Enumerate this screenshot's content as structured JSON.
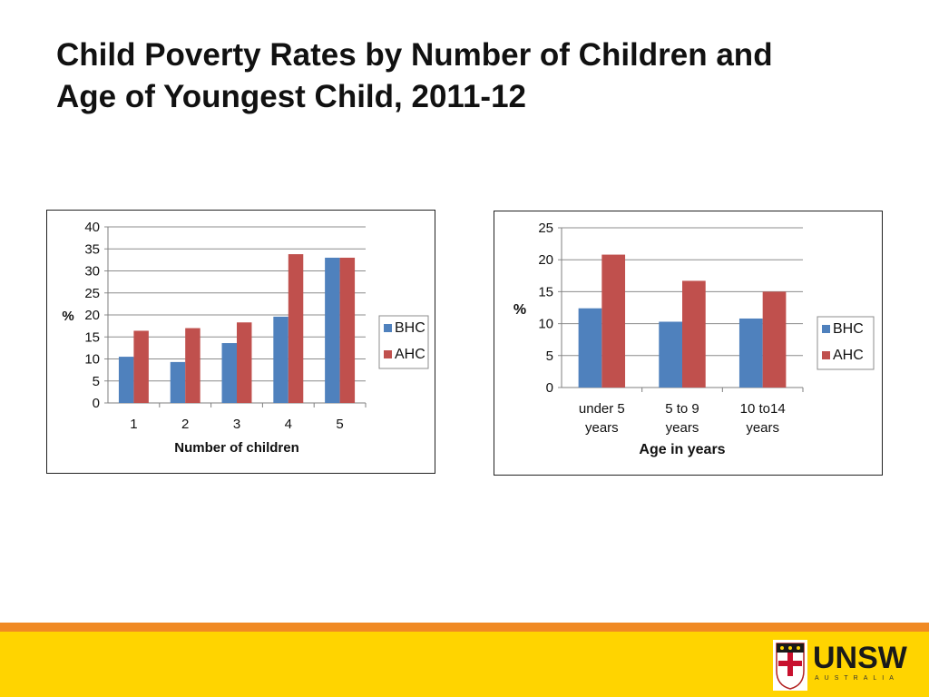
{
  "slide": {
    "title_line1": "Child Poverty Rates by Number of Children and",
    "title_line2": "Age of Youngest Child, 2011-12"
  },
  "colors": {
    "bhc": "#4f81bd",
    "ahc": "#c0504d",
    "grid": "#8c8c8c",
    "footer_orange": "#f08a24",
    "footer_yellow": "#ffd400"
  },
  "logo": {
    "name": "UNSW",
    "sub": "AUSTRALIA",
    "icon": "unsw-crest-icon"
  },
  "chart_data": [
    {
      "type": "bar",
      "categories": [
        "1",
        "2",
        "3",
        "4",
        "5"
      ],
      "series": [
        {
          "name": "BHC",
          "values": [
            10.5,
            9.3,
            13.6,
            19.6,
            33.0
          ]
        },
        {
          "name": "AHC",
          "values": [
            16.4,
            17.0,
            18.3,
            33.8,
            33.0
          ]
        }
      ],
      "title": "",
      "xlabel": "Number of children",
      "ylabel": "%",
      "ylim": [
        0,
        40
      ],
      "yticks": [
        0,
        5,
        10,
        15,
        20,
        25,
        30,
        35,
        40
      ],
      "grid": true,
      "legend": "right"
    },
    {
      "type": "bar",
      "categories": [
        "under 5 years",
        "5 to 9 years",
        "10 to14 years"
      ],
      "category_lines": [
        [
          "under 5",
          "years"
        ],
        [
          "5 to 9",
          "years"
        ],
        [
          "10 to14",
          "years"
        ]
      ],
      "series": [
        {
          "name": "BHC",
          "values": [
            12.4,
            10.3,
            10.8
          ]
        },
        {
          "name": "AHC",
          "values": [
            20.8,
            16.7,
            15.0
          ]
        }
      ],
      "title": "",
      "xlabel": "Age in years",
      "ylabel": "%",
      "ylim": [
        0,
        25
      ],
      "yticks": [
        0,
        5,
        10,
        15,
        20,
        25
      ],
      "grid": true,
      "legend": "right"
    }
  ]
}
